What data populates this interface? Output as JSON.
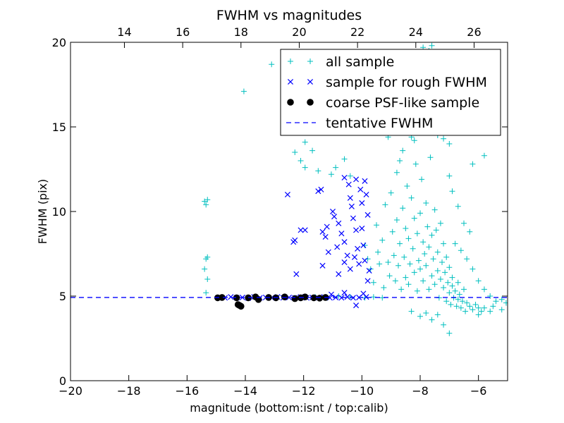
{
  "chart_data": {
    "type": "scatter",
    "title": "FWHM vs magnitudes",
    "xlabel": "magnitude (bottom:isnt / top:calib)",
    "ylabel": "FWHM (pix)",
    "xlim": [
      -20,
      -5
    ],
    "ylim": [
      0,
      20
    ],
    "x_ticks": [
      -20,
      -18,
      -16,
      -14,
      -12,
      -10,
      -8,
      -6
    ],
    "y_ticks": [
      0,
      5,
      10,
      15,
      20
    ],
    "top_axis": {
      "xlim": [
        12.15,
        27.15
      ],
      "ticks": [
        14,
        16,
        18,
        20,
        22,
        24,
        26
      ]
    },
    "legend_position": "top-right",
    "colors": {
      "all_sample": "#00bfbf",
      "rough_fwhm": "#0000ff",
      "psf_like": "#000000",
      "tentative": "#0000ff"
    },
    "series": [
      {
        "name": "all sample",
        "marker": "+",
        "points": [
          [
            -15.4,
            10.6
          ],
          [
            -15.35,
            10.4
          ],
          [
            -15.3,
            10.7
          ],
          [
            -15.3,
            7.3
          ],
          [
            -15.35,
            7.2
          ],
          [
            -15.4,
            6.6
          ],
          [
            -15.3,
            6.0
          ],
          [
            -15.35,
            5.2
          ],
          [
            -14.05,
            17.1
          ],
          [
            -13.1,
            18.7
          ],
          [
            -12.3,
            13.5
          ],
          [
            -12.1,
            13.0
          ],
          [
            -11.95,
            12.6
          ],
          [
            -11.7,
            13.6
          ],
          [
            -11.5,
            12.4
          ],
          [
            -11.05,
            12.2
          ],
          [
            -10.9,
            12.6
          ],
          [
            -10.6,
            13.1
          ],
          [
            -10.4,
            12.1
          ],
          [
            -11.95,
            14.1
          ],
          [
            -12.3,
            4.9
          ],
          [
            -11.6,
            4.95
          ],
          [
            -11.2,
            4.9
          ],
          [
            -10.8,
            5.0
          ],
          [
            -10.4,
            4.95
          ],
          [
            -9.9,
            4.9
          ],
          [
            -9.6,
            4.95
          ],
          [
            -9.3,
            4.9
          ],
          [
            -9.9,
            8.0
          ],
          [
            -9.8,
            7.2
          ],
          [
            -9.7,
            6.6
          ],
          [
            -9.6,
            5.8
          ],
          [
            -9.5,
            9.2
          ],
          [
            -9.45,
            7.6
          ],
          [
            -9.4,
            6.9
          ],
          [
            -9.3,
            8.3
          ],
          [
            -9.25,
            5.5
          ],
          [
            -9.2,
            10.4
          ],
          [
            -9.1,
            7.0
          ],
          [
            -9.05,
            6.2
          ],
          [
            -9.0,
            11.1
          ],
          [
            -8.95,
            8.8
          ],
          [
            -8.9,
            7.4
          ],
          [
            -8.85,
            5.9
          ],
          [
            -8.8,
            12.3
          ],
          [
            -8.8,
            9.5
          ],
          [
            -8.75,
            6.8
          ],
          [
            -8.7,
            8.1
          ],
          [
            -8.65,
            5.4
          ],
          [
            -8.6,
            10.2
          ],
          [
            -8.6,
            13.6
          ],
          [
            -8.55,
            7.3
          ],
          [
            -8.5,
            6.1
          ],
          [
            -8.5,
            9.0
          ],
          [
            -8.45,
            11.5
          ],
          [
            -8.4,
            8.4
          ],
          [
            -8.4,
            5.7
          ],
          [
            -8.35,
            6.9
          ],
          [
            -8.3,
            14.4
          ],
          [
            -8.3,
            10.8
          ],
          [
            -8.25,
            7.8
          ],
          [
            -8.2,
            9.6
          ],
          [
            -8.2,
            6.4
          ],
          [
            -8.15,
            12.8
          ],
          [
            -8.1,
            8.7
          ],
          [
            -8.1,
            5.3
          ],
          [
            -8.05,
            7.1
          ],
          [
            -8.0,
            9.9
          ],
          [
            -8.0,
            6.6
          ],
          [
            -7.95,
            11.9
          ],
          [
            -7.9,
            8.2
          ],
          [
            -7.9,
            5.9
          ],
          [
            -7.85,
            7.5
          ],
          [
            -7.8,
            10.5
          ],
          [
            -7.8,
            6.8
          ],
          [
            -7.75,
            9.1
          ],
          [
            -7.7,
            5.4
          ],
          [
            -7.7,
            7.9
          ],
          [
            -7.65,
            13.2
          ],
          [
            -7.6,
            8.6
          ],
          [
            -7.6,
            6.2
          ],
          [
            -7.55,
            7.2
          ],
          [
            -7.5,
            10.1
          ],
          [
            -7.5,
            5.7
          ],
          [
            -7.45,
            8.9
          ],
          [
            -7.4,
            6.5
          ],
          [
            -7.4,
            7.6
          ],
          [
            -7.35,
            4.9
          ],
          [
            -7.3,
            9.3
          ],
          [
            -7.3,
            6.0
          ],
          [
            -7.25,
            7.0
          ],
          [
            -7.2,
            5.5
          ],
          [
            -7.2,
            8.1
          ],
          [
            -7.15,
            6.4
          ],
          [
            -7.1,
            4.7
          ],
          [
            -7.1,
            7.3
          ],
          [
            -7.05,
            5.8
          ],
          [
            -7.0,
            6.7
          ],
          [
            -7.0,
            5.2
          ],
          [
            -6.95,
            4.5
          ],
          [
            -6.9,
            6.1
          ],
          [
            -6.9,
            5.6
          ],
          [
            -6.85,
            4.9
          ],
          [
            -6.8,
            5.3
          ],
          [
            -6.75,
            4.4
          ],
          [
            -6.7,
            5.8
          ],
          [
            -6.7,
            4.8
          ],
          [
            -6.65,
            5.1
          ],
          [
            -6.6,
            4.3
          ],
          [
            -6.55,
            4.7
          ],
          [
            -6.5,
            5.4
          ],
          [
            -6.45,
            4.1
          ],
          [
            -6.4,
            4.6
          ],
          [
            -6.3,
            4.4
          ],
          [
            -6.2,
            4.2
          ],
          [
            -6.1,
            4.5
          ],
          [
            -6.0,
            4.3
          ],
          [
            -5.9,
            4.1
          ],
          [
            -5.8,
            4.3
          ],
          [
            -5.5,
            4.4
          ],
          [
            -5.2,
            4.2
          ],
          [
            -5.05,
            4.6
          ],
          [
            -7.2,
            3.3
          ],
          [
            -7.0,
            2.8
          ],
          [
            -7.4,
            3.9
          ],
          [
            -7.6,
            3.6
          ],
          [
            -7.8,
            4.0
          ],
          [
            -8.0,
            3.8
          ],
          [
            -8.3,
            4.1
          ],
          [
            -8.6,
            16.1
          ],
          [
            -8.3,
            15.7
          ],
          [
            -8.1,
            16.8
          ],
          [
            -7.9,
            17.4
          ],
          [
            -7.8,
            18.2
          ],
          [
            -7.7,
            19.5
          ],
          [
            -7.6,
            19.8
          ],
          [
            -7.5,
            19.2
          ],
          [
            -7.9,
            19.7
          ],
          [
            -7.3,
            18.8
          ],
          [
            -7.5,
            15.8
          ],
          [
            -7.7,
            15.0
          ],
          [
            -7.4,
            14.5
          ],
          [
            -7.2,
            14.3
          ],
          [
            -7.15,
            16.9
          ],
          [
            -7.3,
            17.8
          ],
          [
            -7.0,
            14.0
          ],
          [
            -8.2,
            14.2
          ],
          [
            -8.4,
            15.1
          ],
          [
            -8.9,
            15.2
          ],
          [
            -9.1,
            14.4
          ],
          [
            -8.7,
            13.0
          ],
          [
            -9.0,
            17.0
          ],
          [
            -9.4,
            16.3
          ],
          [
            -9.6,
            15.8
          ],
          [
            -9.3,
            14.7
          ],
          [
            -6.2,
            12.8
          ],
          [
            -5.8,
            13.3
          ],
          [
            -6.5,
            9.3
          ],
          [
            -6.3,
            8.8
          ],
          [
            -6.7,
            10.3
          ],
          [
            -6.9,
            11.2
          ],
          [
            -7.0,
            12.1
          ],
          [
            -6.8,
            8.1
          ],
          [
            -6.6,
            7.7
          ],
          [
            -6.4,
            7.2
          ],
          [
            -6.2,
            6.6
          ],
          [
            -6.0,
            5.9
          ],
          [
            -5.8,
            5.4
          ],
          [
            -5.6,
            5.0
          ],
          [
            -5.4,
            4.7
          ],
          [
            -5.2,
            4.8
          ],
          [
            -5.6,
            4.1
          ],
          [
            -6.0,
            3.9
          ]
        ]
      },
      {
        "name": "sample for rough FWHM",
        "marker": "x",
        "points": [
          [
            -14.9,
            4.92
          ],
          [
            -14.7,
            4.9
          ],
          [
            -14.5,
            4.95
          ],
          [
            -14.3,
            4.9
          ],
          [
            -14.1,
            4.92
          ],
          [
            -13.9,
            4.88
          ],
          [
            -13.7,
            4.95
          ],
          [
            -13.5,
            4.9
          ],
          [
            -13.3,
            4.92
          ],
          [
            -13.1,
            4.9
          ],
          [
            -12.9,
            4.95
          ],
          [
            -12.7,
            4.9
          ],
          [
            -12.5,
            4.92
          ],
          [
            -12.3,
            4.9
          ],
          [
            -12.1,
            4.95
          ],
          [
            -11.9,
            4.9
          ],
          [
            -11.7,
            4.92
          ],
          [
            -11.5,
            4.9
          ],
          [
            -11.3,
            4.95
          ],
          [
            -11.1,
            4.9
          ],
          [
            -10.9,
            4.92
          ],
          [
            -10.7,
            4.9
          ],
          [
            -10.5,
            4.95
          ],
          [
            -10.3,
            4.9
          ],
          [
            -10.1,
            4.92
          ],
          [
            -10.2,
            4.45
          ],
          [
            -10.6,
            5.2
          ],
          [
            -11.05,
            5.1
          ],
          [
            -9.95,
            5.15
          ],
          [
            -9.85,
            4.95
          ],
          [
            -12.55,
            11.0
          ],
          [
            -12.35,
            8.2
          ],
          [
            -12.3,
            8.3
          ],
          [
            -12.25,
            6.3
          ],
          [
            -12.1,
            8.9
          ],
          [
            -11.95,
            8.9
          ],
          [
            -11.5,
            11.2
          ],
          [
            -11.4,
            11.3
          ],
          [
            -11.35,
            8.8
          ],
          [
            -11.25,
            8.5
          ],
          [
            -11.15,
            7.6
          ],
          [
            -11.0,
            10.0
          ],
          [
            -10.95,
            9.7
          ],
          [
            -10.8,
            9.3
          ],
          [
            -10.7,
            8.7
          ],
          [
            -10.6,
            8.2
          ],
          [
            -10.5,
            7.4
          ],
          [
            -10.45,
            11.6
          ],
          [
            -10.35,
            10.3
          ],
          [
            -10.3,
            9.6
          ],
          [
            -10.2,
            8.9
          ],
          [
            -10.15,
            7.8
          ],
          [
            -10.1,
            6.9
          ],
          [
            -10.05,
            11.3
          ],
          [
            -10.0,
            10.5
          ],
          [
            -10.0,
            9.0
          ],
          [
            -9.95,
            8.0
          ],
          [
            -9.9,
            7.1
          ],
          [
            -9.85,
            11.0
          ],
          [
            -9.8,
            9.8
          ],
          [
            -10.8,
            6.3
          ],
          [
            -10.6,
            7.0
          ],
          [
            -10.4,
            6.6
          ],
          [
            -10.25,
            7.3
          ],
          [
            -11.35,
            6.8
          ],
          [
            -10.2,
            11.9
          ],
          [
            -9.9,
            11.8
          ],
          [
            -10.6,
            12.0
          ],
          [
            -10.4,
            10.8
          ],
          [
            -11.2,
            9.1
          ],
          [
            -10.85,
            7.9
          ],
          [
            -9.75,
            6.5
          ],
          [
            -9.8,
            5.9
          ]
        ]
      },
      {
        "name": "coarse PSF-like sample",
        "marker": "o",
        "points": [
          [
            -14.95,
            4.9
          ],
          [
            -14.8,
            4.92
          ],
          [
            -14.3,
            4.9
          ],
          [
            -14.25,
            4.5
          ],
          [
            -14.2,
            4.45
          ],
          [
            -14.15,
            4.4
          ],
          [
            -13.9,
            4.9
          ],
          [
            -13.65,
            4.95
          ],
          [
            -13.55,
            4.8
          ],
          [
            -13.2,
            4.92
          ],
          [
            -12.95,
            4.9
          ],
          [
            -12.65,
            4.95
          ],
          [
            -12.3,
            4.85
          ],
          [
            -12.1,
            4.9
          ],
          [
            -11.95,
            4.95
          ],
          [
            -11.65,
            4.9
          ],
          [
            -11.45,
            4.88
          ],
          [
            -11.25,
            4.92
          ]
        ]
      }
    ],
    "tentative_fwhm": {
      "name": "tentative FWHM",
      "value": 4.92
    }
  }
}
